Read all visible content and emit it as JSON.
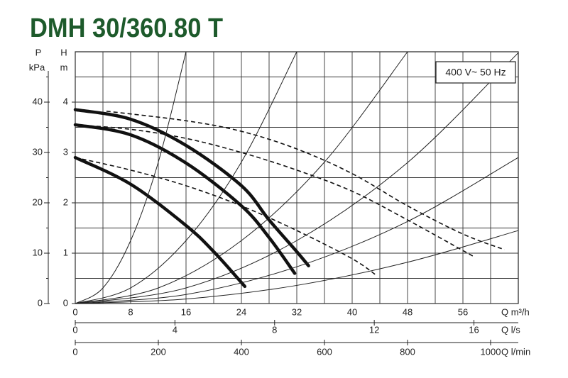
{
  "chart_data": {
    "type": "line",
    "title": "DMH 30/360.80 T",
    "annotation": "400 V~ 50 Hz",
    "xlabel": "Q m³/h",
    "x2label": "Q l/s",
    "x3label": "Q l/min",
    "ylabel": "H",
    "ylabel_unit": "m",
    "y2label": "P",
    "y2label_unit": "kPa",
    "xlim": [
      0,
      64
    ],
    "xticks": [
      0,
      8,
      16,
      24,
      32,
      40,
      48,
      56
    ],
    "x_minor_ticks": [
      4,
      12,
      20,
      28,
      36,
      44,
      52,
      60
    ],
    "x2lim": [
      0,
      17.78
    ],
    "x2ticks": [
      0,
      4,
      8,
      12,
      16
    ],
    "x3lim": [
      0,
      1066.7
    ],
    "x3ticks": [
      0,
      200,
      400,
      600,
      800,
      1000
    ],
    "ylim": [
      0,
      5
    ],
    "yticks": [
      0,
      1,
      2,
      3,
      4
    ],
    "y_minor_ticks": [
      0.5,
      1.5,
      2.5,
      3.5,
      4.5
    ],
    "y2lim": [
      0,
      50
    ],
    "y2ticks": [
      0,
      10,
      20,
      30,
      40
    ],
    "y2_minor_ticks": [
      5,
      15,
      25,
      35,
      45
    ],
    "grid": true,
    "series": [
      {
        "style": "thick",
        "color": "#111111",
        "x": [
          0,
          8,
          16,
          24,
          28,
          32,
          33.7
        ],
        "values": [
          3.85,
          3.66,
          3.14,
          2.34,
          1.66,
          1.03,
          0.75
        ]
      },
      {
        "style": "thick",
        "color": "#111111",
        "x": [
          0,
          8,
          16,
          24,
          28,
          31.7
        ],
        "values": [
          3.55,
          3.35,
          2.79,
          1.94,
          1.31,
          0.6
        ]
      },
      {
        "style": "thick",
        "color": "#111111",
        "x": [
          0,
          8,
          16,
          20,
          24.5
        ],
        "values": [
          2.9,
          2.37,
          1.55,
          1.03,
          0.34
        ]
      },
      {
        "style": "dashed",
        "color": "#111111",
        "x": [
          4.5,
          16,
          24,
          32,
          40,
          48,
          56,
          62
        ],
        "values": [
          3.82,
          3.63,
          3.42,
          3.07,
          2.58,
          1.94,
          1.38,
          1.07
        ]
      },
      {
        "style": "dashed",
        "color": "#111111",
        "x": [
          0,
          8,
          16,
          24,
          32,
          40,
          48,
          57.6
        ],
        "values": [
          3.55,
          3.46,
          3.28,
          3.0,
          2.65,
          2.23,
          1.66,
          0.93
        ]
      },
      {
        "style": "dashed",
        "color": "#111111",
        "x": [
          0,
          8,
          16,
          24,
          32,
          40,
          43.5
        ],
        "values": [
          2.9,
          2.65,
          2.34,
          1.94,
          1.45,
          0.89,
          0.56
        ]
      },
      {
        "style": "thin",
        "color": "#222222",
        "x": [
          0,
          4,
          8,
          12,
          16
        ],
        "values": [
          0,
          0.31,
          1.25,
          2.81,
          5
        ]
      },
      {
        "style": "thin",
        "color": "#222222",
        "x": [
          0,
          8,
          16,
          24,
          32
        ],
        "values": [
          0,
          0.31,
          1.25,
          2.81,
          5
        ]
      },
      {
        "style": "thin",
        "color": "#222222",
        "x": [
          0,
          12,
          24,
          36,
          48
        ],
        "values": [
          0,
          0.31,
          1.25,
          2.81,
          5
        ]
      },
      {
        "style": "thin",
        "color": "#222222",
        "x": [
          0,
          16,
          32,
          48,
          64
        ],
        "values": [
          0,
          0.31,
          1.25,
          2.8,
          4.98
        ]
      },
      {
        "style": "thin",
        "color": "#222222",
        "x": [
          0,
          16,
          32,
          48,
          64
        ],
        "values": [
          0,
          0.18,
          0.73,
          1.63,
          2.9
        ]
      },
      {
        "style": "thin",
        "color": "#222222",
        "x": [
          0,
          16,
          32,
          48,
          64
        ],
        "values": [
          0,
          0.09,
          0.36,
          0.82,
          1.45
        ]
      }
    ]
  }
}
